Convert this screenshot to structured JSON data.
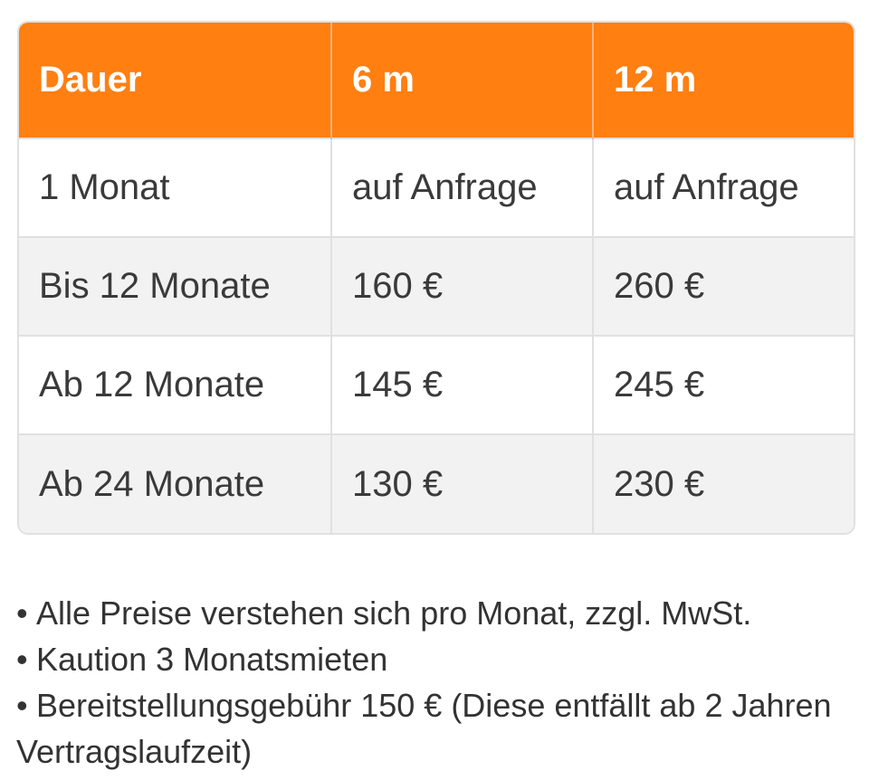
{
  "table": {
    "headers": [
      "Dauer",
      "6 m",
      "12 m"
    ],
    "rows": [
      [
        "1 Monat",
        "auf Anfrage",
        "auf Anfrage"
      ],
      [
        "Bis 12 Monate",
        "160 €",
        "260 €"
      ],
      [
        "Ab 12 Monate",
        "145 €",
        "245 €"
      ],
      [
        "Ab 24 Monate",
        "130 €",
        "230 €"
      ]
    ]
  },
  "notes": {
    "bullet": "•",
    "items": [
      "Alle Preise verstehen sich pro Monat, zzgl. MwSt.",
      "Kaution 3 Monatsmieten",
      "Bereitstellungsgebühr 150 € (Diese entfällt ab 2 Jahren Vertragslaufzeit)"
    ]
  },
  "colors": {
    "header_bg": "#ff7f11",
    "header_text": "#ffffff",
    "row_alt_bg": "#f2f2f2",
    "border": "#e0e0e0"
  }
}
